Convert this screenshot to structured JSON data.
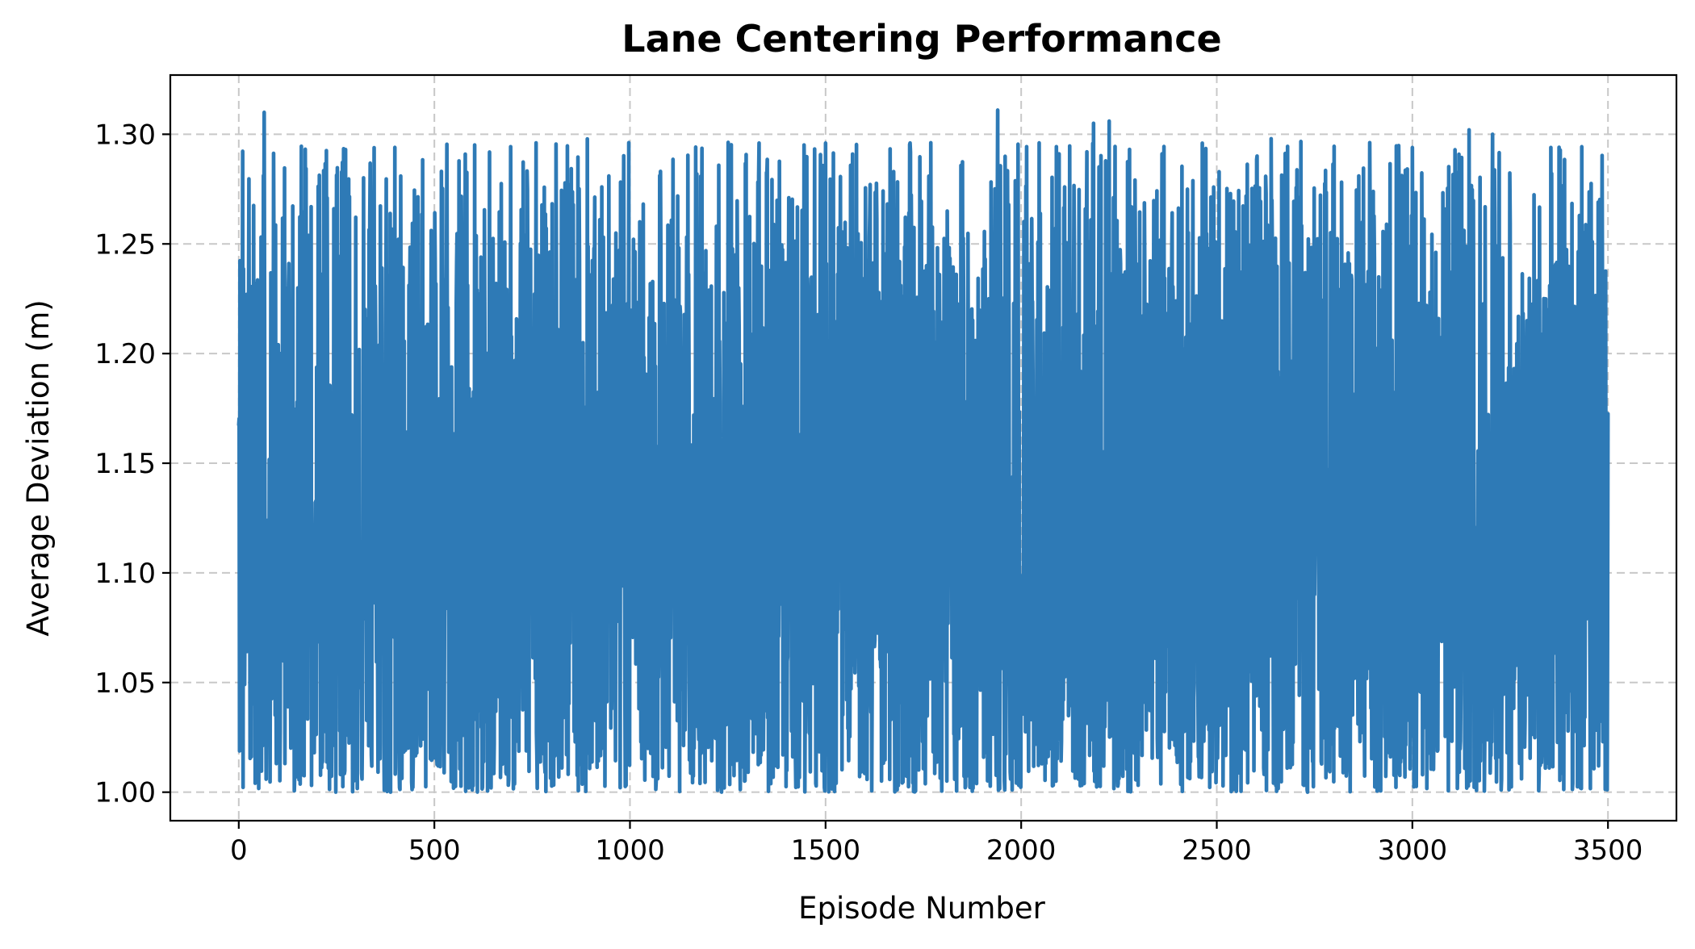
{
  "chart_data": {
    "type": "line",
    "title": "Lane Centering Performance",
    "xlabel": "Episode Number",
    "ylabel": "Average Deviation (m)",
    "xlim": [
      -175,
      3675
    ],
    "ylim": [
      0.987,
      1.327
    ],
    "xticks": [
      0,
      500,
      1000,
      1500,
      2000,
      2500,
      3000,
      3500
    ],
    "xtick_labels": [
      "0",
      "500",
      "1000",
      "1500",
      "2000",
      "2500",
      "3000",
      "3500"
    ],
    "yticks": [
      1.0,
      1.05,
      1.1,
      1.15,
      1.2,
      1.25,
      1.3
    ],
    "ytick_labels": [
      "1.00",
      "1.05",
      "1.10",
      "1.15",
      "1.20",
      "1.25",
      "1.30"
    ],
    "grid": true,
    "series": [
      {
        "color": "#2e7ab6",
        "x_range": [
          0,
          3500
        ],
        "n_points": 3501,
        "distribution": "noisy values fluctuating between 1.00 and 1.31 with no trend",
        "y_min": 1.0,
        "y_max": 1.31,
        "y_mean": 1.1,
        "peaks": [
          {
            "x": 65,
            "y": 1.31
          },
          {
            "x": 1940,
            "y": 1.311
          },
          {
            "x": 2185,
            "y": 1.305
          },
          {
            "x": 2225,
            "y": 1.306
          },
          {
            "x": 3145,
            "y": 1.302
          },
          {
            "x": 3205,
            "y": 1.3
          }
        ]
      }
    ]
  }
}
